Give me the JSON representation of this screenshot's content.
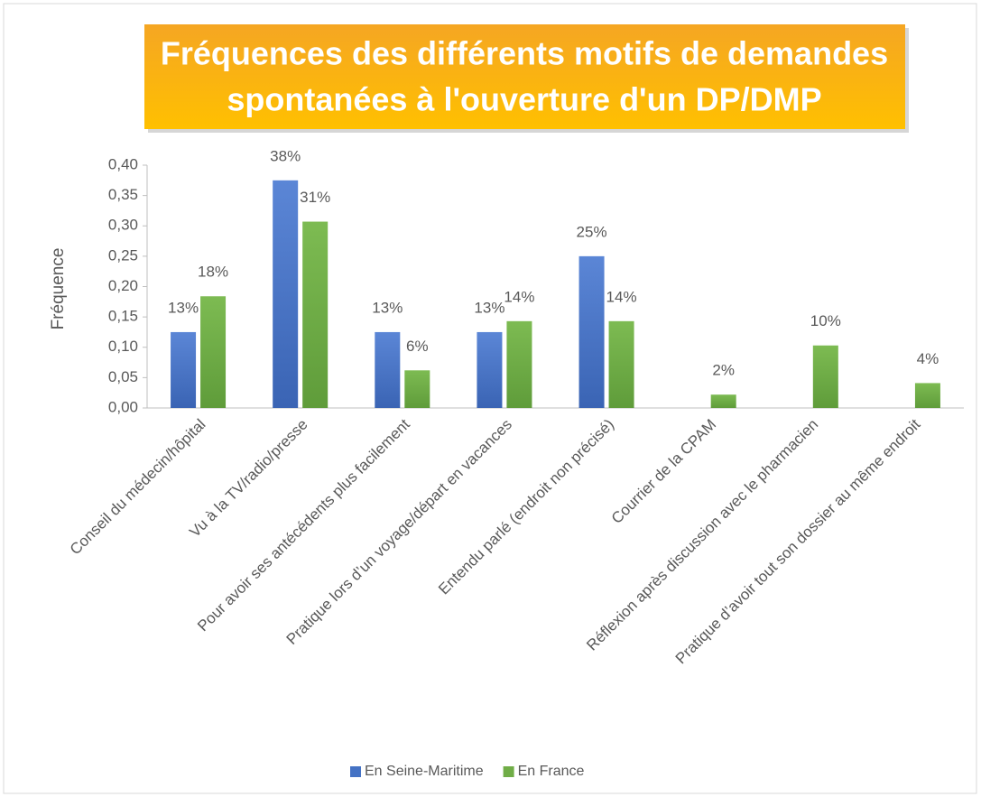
{
  "chart_data": {
    "type": "bar",
    "title": [
      "Fréquences des différents motifs de demandes",
      "spontanées à l'ouverture d'un DP/DMP"
    ],
    "y_label": "Fréquence",
    "categories": [
      "Conseil du médecin/hôpital",
      "Vu à la TV/radio/presse",
      "Pour avoir ses antécédents plus facilement",
      "Pratique lors d’un voyage/départ en vacances",
      "Entendu parlé (endroit non précisé)",
      "Courrier de la CPAM",
      "Réflexion après discussion avec le pharmacien",
      "Pratique d’avoir tout son dossier au même endroit"
    ],
    "series": [
      {
        "name": "En Seine-Maritime",
        "color": "#4472c4",
        "values": [
          0.125,
          0.375,
          0.125,
          0.125,
          0.25,
          null,
          null,
          null
        ],
        "value_labels": [
          "13%",
          "38%",
          "13%",
          "13%",
          "25%",
          null,
          null,
          null
        ]
      },
      {
        "name": "En France",
        "color": "#70ad47",
        "values": [
          0.184,
          0.307,
          0.062,
          0.143,
          0.143,
          0.022,
          0.103,
          0.041
        ],
        "value_labels": [
          "18%",
          "31%",
          "6%",
          "14%",
          "14%",
          "2%",
          "10%",
          "4%"
        ]
      }
    ],
    "ylim": [
      0,
      0.4
    ],
    "yticks": [
      {
        "value": 0,
        "label": "0,00"
      },
      {
        "value": 0.05,
        "label": "0,05"
      },
      {
        "value": 0.1,
        "label": "0,10"
      },
      {
        "value": 0.15,
        "label": "0,15"
      },
      {
        "value": 0.2,
        "label": "0,20"
      },
      {
        "value": 0.25,
        "label": "0,25"
      },
      {
        "value": 0.3,
        "label": "0,30"
      },
      {
        "value": 0.35,
        "label": "0,35"
      },
      {
        "value": 0.4,
        "label": "0,40"
      }
    ],
    "legend": "bottom"
  }
}
